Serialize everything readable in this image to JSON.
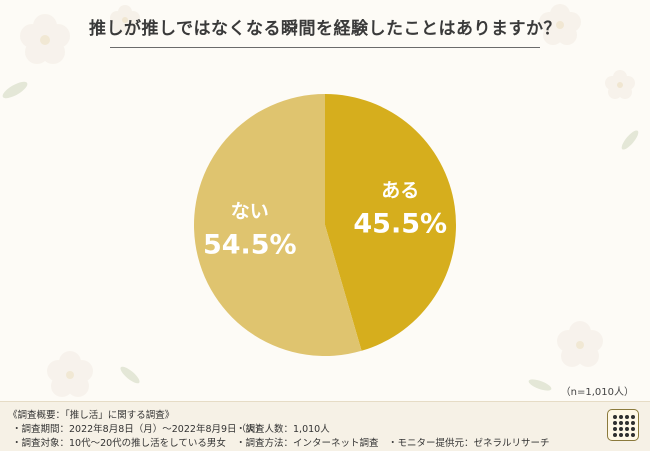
{
  "title": "推しが推しではなくなる瞬間を経験したことはありますか？",
  "sample_size": "（n=1,010人）",
  "chart_data": {
    "type": "pie",
    "title": "推しが推しではなくなる瞬間を経験したことはありますか？",
    "slices": [
      {
        "label": "ある",
        "value": 45.5,
        "display": "45.5%",
        "color": "#d6ae1d"
      },
      {
        "label": "ない",
        "value": 54.5,
        "display": "54.5%",
        "color": "#dfc46f"
      }
    ]
  },
  "footer": {
    "heading": "《調査概要：「推し活」に関する調査》",
    "period": "・調査期間：2022年8月8日（月）～2022年8月9日（火）",
    "count": "・調査人数：1,010人",
    "target": "・調査対象：10代～20代の推し活をしている男女",
    "method": "・調査方法：インターネット調査",
    "provider": "・モニター提供元：ゼネラルリサーチ"
  },
  "colors": {
    "background": "#fdfbf6",
    "slice_yes": "#d6ae1d",
    "slice_no": "#dfc46f",
    "title": "#3a3a3a"
  }
}
